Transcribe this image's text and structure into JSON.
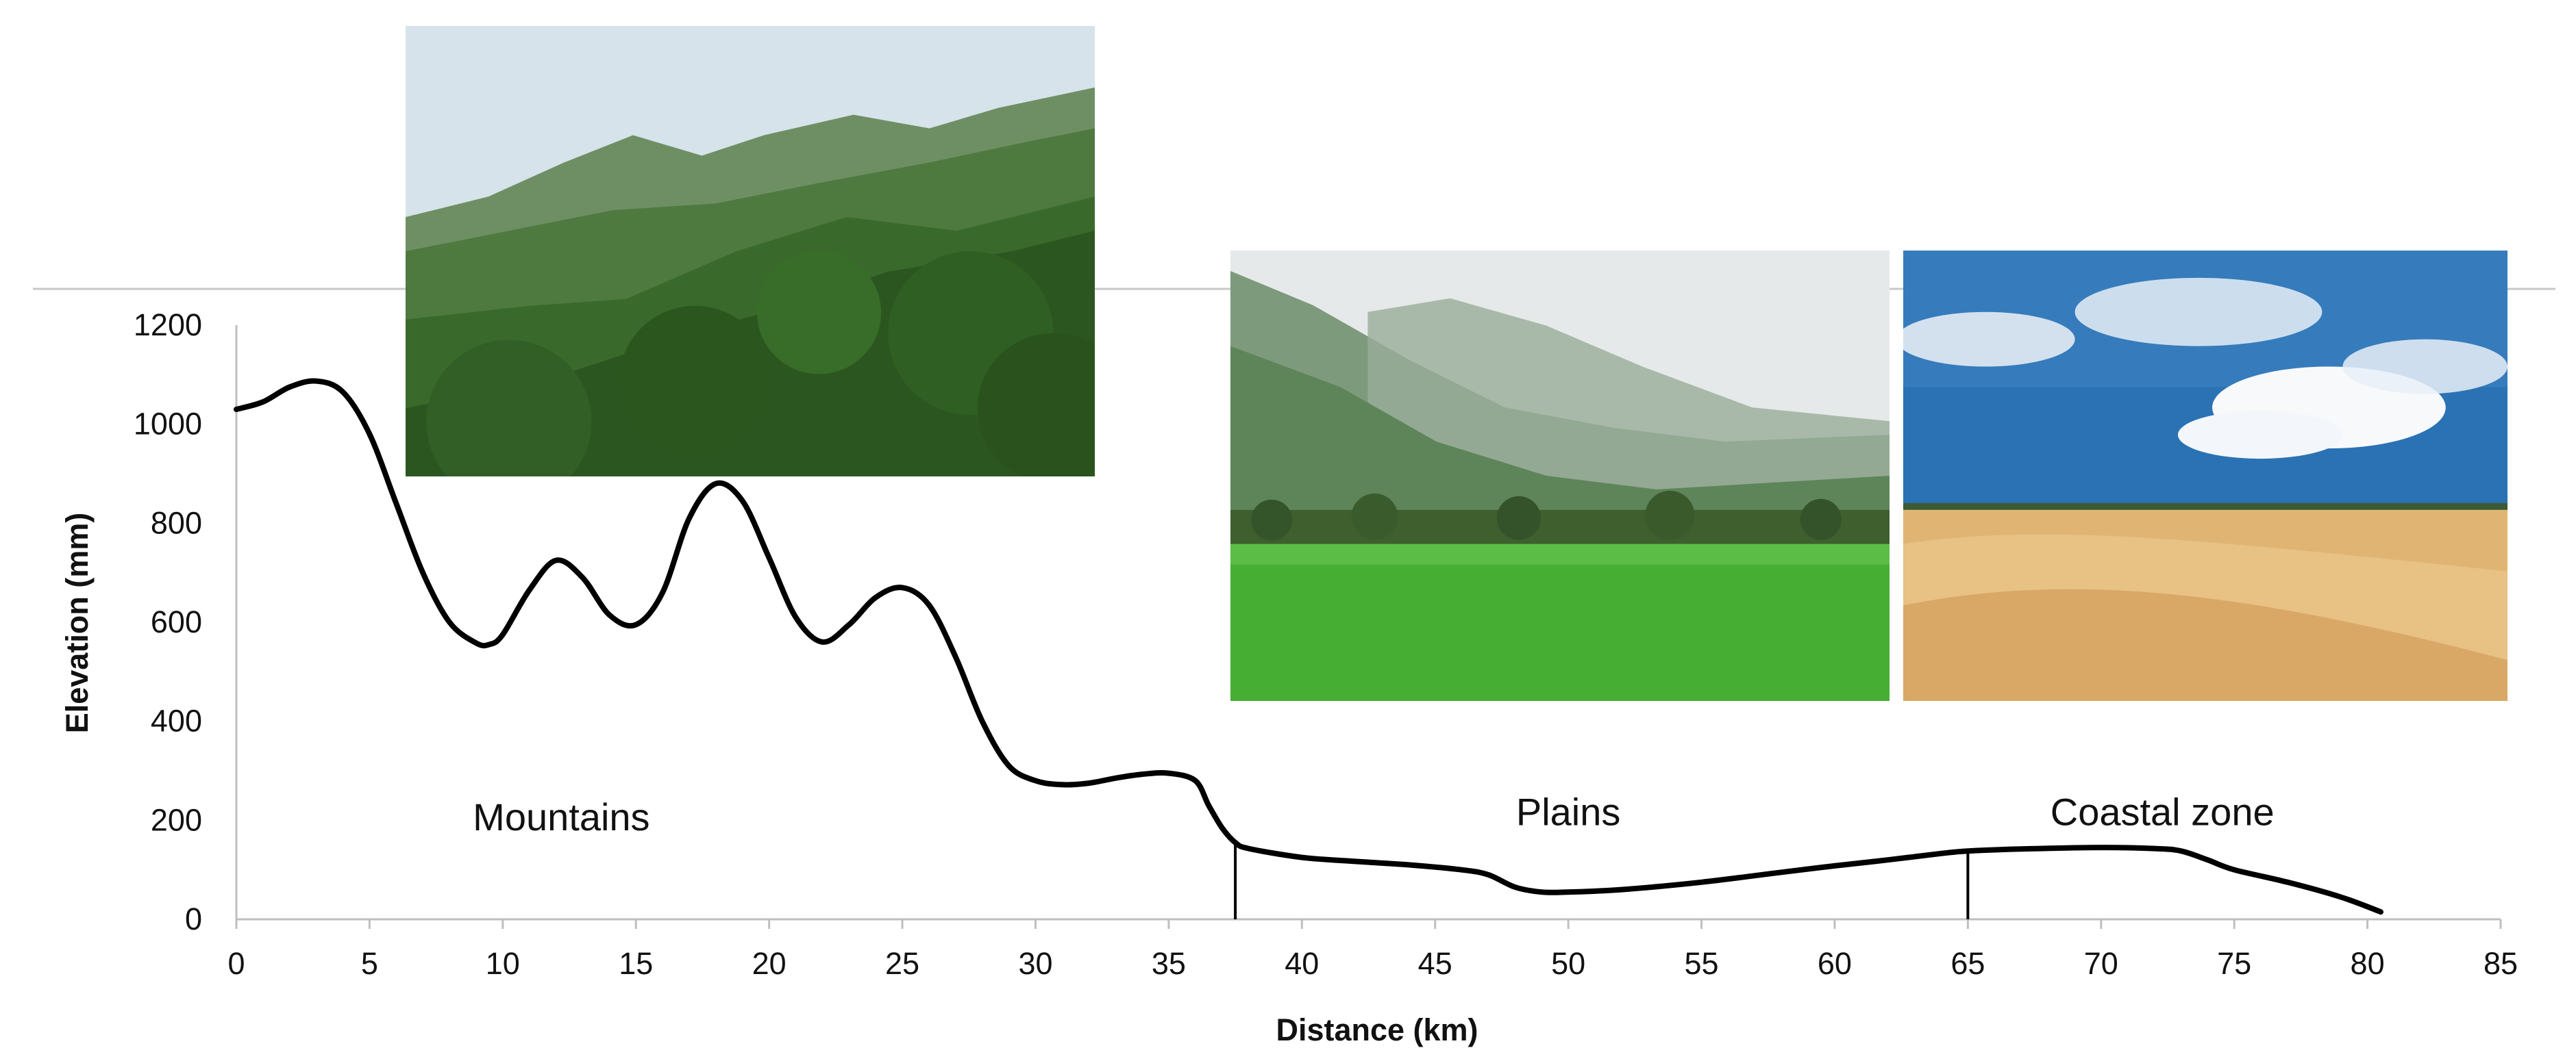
{
  "chart_data": {
    "type": "line",
    "title": "",
    "xlabel": "Distance (km)",
    "ylabel": "Elevation (mm)",
    "xlim": [
      0,
      85
    ],
    "ylim": [
      0,
      1200
    ],
    "xticks": [
      0,
      5,
      10,
      15,
      20,
      25,
      30,
      35,
      40,
      45,
      50,
      55,
      60,
      65,
      70,
      75,
      80,
      85
    ],
    "yticks": [
      0,
      200,
      400,
      600,
      800,
      1000,
      1200
    ],
    "grid": false,
    "legend": "none",
    "line_color": "#000000",
    "series": [
      {
        "x": [
          0,
          1,
          2,
          3,
          4,
          5,
          6,
          7,
          8,
          9,
          9.5,
          10,
          11,
          12,
          13,
          14,
          15,
          16,
          17,
          18,
          19,
          20,
          21,
          22,
          23,
          24,
          25,
          26,
          27,
          28,
          29,
          30,
          31,
          32,
          33,
          34,
          35,
          36,
          36.5,
          37,
          37.5,
          38,
          40,
          42,
          44,
          46,
          47,
          48,
          49,
          50,
          52,
          55,
          58,
          60,
          62,
          64,
          65,
          67,
          70,
          72,
          73,
          74,
          75,
          77,
          79,
          80.5
        ],
        "y": [
          1030,
          1045,
          1075,
          1087,
          1065,
          980,
          840,
          700,
          600,
          558,
          555,
          575,
          665,
          725,
          690,
          615,
          595,
          660,
          810,
          880,
          845,
          730,
          610,
          560,
          595,
          650,
          670,
          635,
          530,
          400,
          310,
          280,
          272,
          275,
          285,
          293,
          295,
          280,
          230,
          185,
          155,
          143,
          125,
          117,
          110,
          100,
          90,
          65,
          55,
          55,
          60,
          75,
          95,
          108,
          120,
          133,
          138,
          142,
          145,
          143,
          138,
          120,
          100,
          75,
          45,
          15
        ]
      }
    ],
    "zone_boundaries": [
      37.5,
      65
    ],
    "annotations": [
      {
        "text": "Mountains",
        "x": 12.2,
        "y": 180
      },
      {
        "text": "Plains",
        "x": 50,
        "y": 190
      },
      {
        "text": "Coastal zone",
        "x": 72.3,
        "y": 190
      }
    ]
  },
  "photos": [
    {
      "label": "mountains-photo",
      "sky": "#d8e4ea",
      "far": "#6f8f64",
      "near": "#2f5a24"
    },
    {
      "label": "plains-photo",
      "sky": "#e4e8e8",
      "far": "#7d9c7c",
      "field": "#48b035"
    },
    {
      "label": "coastal-photo",
      "sky": "#2a72b5",
      "cloud": "#f2f6fa",
      "sand": "#e2b877"
    }
  ]
}
